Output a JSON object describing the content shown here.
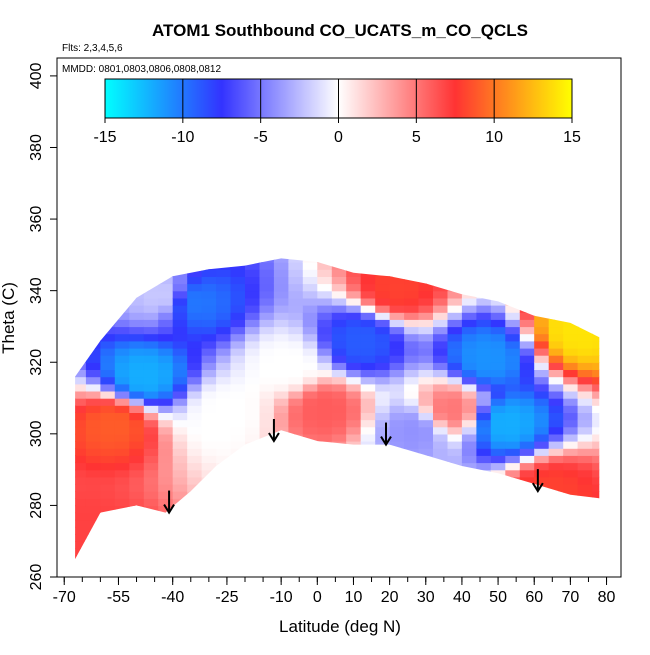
{
  "chart_data": {
    "type": "heatmap",
    "title": "ATOM1 Southbound CO_UCATS_m_CO_QCLS",
    "flights_label": "Flts: 2,3,4,5,6",
    "dates_label": "MMDD: 0801,0803,0806,0808,0812",
    "xlabel": "Latitude (deg N)",
    "ylabel": "Theta (C)",
    "xlim": [
      -72,
      84
    ],
    "ylim": [
      260,
      405
    ],
    "x_ticks": [
      "-70",
      "-55",
      "-40",
      "-25",
      "-10",
      "0",
      "10",
      "20",
      "30",
      "40",
      "50",
      "60",
      "70",
      "80"
    ],
    "x_tick_values": [
      -70,
      -55,
      -40,
      -25,
      -10,
      0,
      10,
      20,
      30,
      40,
      50,
      60,
      70,
      80
    ],
    "y_ticks": [
      "260",
      "280",
      "300",
      "320",
      "340",
      "360",
      "380",
      "400"
    ],
    "y_tick_values": [
      260,
      280,
      300,
      320,
      340,
      360,
      380,
      400
    ],
    "colorbar": {
      "min": -15,
      "max": 15,
      "ticks": [
        "-15",
        "-10",
        "-5",
        "0",
        "5",
        "10",
        "15"
      ],
      "tick_values": [
        -15,
        -10,
        -5,
        0,
        5,
        10,
        15
      ],
      "stops": [
        "#00ffff",
        "#3333ff",
        "#ffffff",
        "#ff3333",
        "#ffff00"
      ]
    },
    "curtain_top": [
      [
        -67,
        316
      ],
      [
        -60,
        326
      ],
      [
        -50,
        338
      ],
      [
        -40,
        344
      ],
      [
        -30,
        346
      ],
      [
        -20,
        347
      ],
      [
        -10,
        349
      ],
      [
        0,
        348
      ],
      [
        10,
        345
      ],
      [
        20,
        344
      ],
      [
        30,
        342
      ],
      [
        40,
        339
      ],
      [
        50,
        337
      ],
      [
        60,
        333
      ],
      [
        70,
        331
      ],
      [
        78,
        327
      ]
    ],
    "curtain_bottom": [
      [
        -67,
        265
      ],
      [
        -60,
        278
      ],
      [
        -50,
        280
      ],
      [
        -42,
        278
      ],
      [
        -35,
        284
      ],
      [
        -28,
        291
      ],
      [
        -20,
        297
      ],
      [
        -10,
        301
      ],
      [
        0,
        298
      ],
      [
        10,
        297
      ],
      [
        20,
        297
      ],
      [
        30,
        294
      ],
      [
        40,
        291
      ],
      [
        50,
        289
      ],
      [
        60,
        286
      ],
      [
        70,
        283
      ],
      [
        78,
        282
      ]
    ],
    "arrows": [
      {
        "lat": -41,
        "theta": 278
      },
      {
        "lat": -12,
        "theta": 298
      },
      {
        "lat": 19,
        "theta": 297
      },
      {
        "lat": 61,
        "theta": 284
      }
    ],
    "anomalies": [
      {
        "lat": -58,
        "theta": 302,
        "value": 9
      },
      {
        "lat": -65,
        "theta": 270,
        "value": 7
      },
      {
        "lat": 0,
        "theta": 306,
        "value": 6
      },
      {
        "lat": 20,
        "theta": 340,
        "value": 8
      },
      {
        "lat": 62,
        "theta": 283,
        "value": 8
      },
      {
        "lat": 70,
        "theta": 328,
        "value": 14
      },
      {
        "lat": 35,
        "theta": 306,
        "value": 5
      },
      {
        "lat": -10,
        "theta": 318,
        "value": 0
      },
      {
        "lat": -28,
        "theta": 305,
        "value": 0
      },
      {
        "lat": -45,
        "theta": 338,
        "value": -2
      },
      {
        "lat": -36,
        "theta": 336,
        "value": -10
      },
      {
        "lat": -50,
        "theta": 315,
        "value": -12
      },
      {
        "lat": 10,
        "theta": 325,
        "value": -9
      },
      {
        "lat": 45,
        "theta": 320,
        "value": -11
      },
      {
        "lat": 25,
        "theta": 300,
        "value": -4
      },
      {
        "lat": 50,
        "theta": 302,
        "value": -12
      }
    ]
  }
}
